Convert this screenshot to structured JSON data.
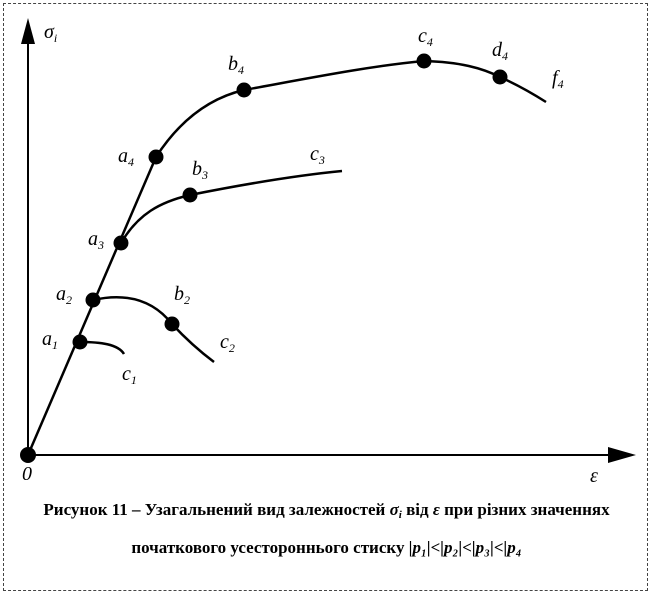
{
  "figure": {
    "y_axis_label": "σ",
    "y_axis_sub": "i",
    "x_axis_label": "ε",
    "origin_label": "0",
    "points": [
      {
        "id": "a1",
        "letter": "a",
        "sub": "1"
      },
      {
        "id": "c1",
        "letter": "c",
        "sub": "1"
      },
      {
        "id": "a2",
        "letter": "a",
        "sub": "2"
      },
      {
        "id": "b2",
        "letter": "b",
        "sub": "2"
      },
      {
        "id": "c2",
        "letter": "c",
        "sub": "2"
      },
      {
        "id": "a3",
        "letter": "a",
        "sub": "3"
      },
      {
        "id": "b3",
        "letter": "b",
        "sub": "3"
      },
      {
        "id": "c3",
        "letter": "c",
        "sub": "3"
      },
      {
        "id": "a4",
        "letter": "a",
        "sub": "4"
      },
      {
        "id": "b4",
        "letter": "b",
        "sub": "4"
      },
      {
        "id": "c4",
        "letter": "c",
        "sub": "4"
      },
      {
        "id": "d4",
        "letter": "d",
        "sub": "4"
      },
      {
        "id": "f4",
        "letter": "f",
        "sub": "4"
      }
    ]
  },
  "caption": {
    "line1_prefix": "Рисунок  11 –  Узагальнений вид залежностей ",
    "line1_sigma": "σ",
    "line1_sigma_sub": "i",
    "line1_mid": " від ",
    "line1_eps": "ε",
    "line1_suffix": " при різних значеннях",
    "line2_prefix": "початкового усестороннього стиску ",
    "line2_relation": "|p₁|<|p₂|<|p₃|<|p₄"
  }
}
